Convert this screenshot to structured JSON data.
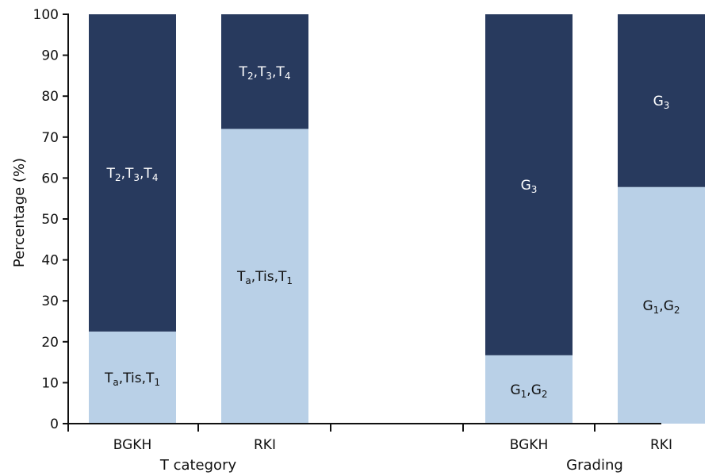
{
  "chart_data": {
    "type": "bar",
    "stacked": true,
    "ylabel": "Percentage (%)",
    "ylim": [
      0,
      100
    ],
    "yticks": [
      0,
      10,
      20,
      30,
      40,
      50,
      60,
      70,
      80,
      90,
      100
    ],
    "colors": {
      "lower": "#b9d0e7",
      "upper": "#283a5e"
    },
    "groups": [
      {
        "name": "T category",
        "bars": [
          {
            "category": "BGKH",
            "segments": [
              {
                "base": "T",
                "sub": "a",
                "rest": ",Tis,T",
                "sub2": "1",
                "value": 22.5,
                "position": "lower"
              },
              {
                "base": "T",
                "sub": "2",
                "rest": ",T",
                "sub2": "3",
                "rest2": ",T",
                "sub3": "4",
                "value": 77.5,
                "position": "upper"
              }
            ]
          },
          {
            "category": "RKI",
            "segments": [
              {
                "base": "T",
                "sub": "a",
                "rest": ",Tis,T",
                "sub2": "1",
                "value": 72,
                "position": "lower"
              },
              {
                "base": "T",
                "sub": "2",
                "rest": ",T",
                "sub2": "3",
                "rest2": ",T",
                "sub3": "4",
                "value": 28,
                "position": "upper"
              }
            ]
          }
        ]
      },
      {
        "name": "Grading",
        "bars": [
          {
            "category": "BGKH",
            "segments": [
              {
                "base": "G",
                "sub": "1",
                "rest": ",G",
                "sub2": "2",
                "value": 16.7,
                "position": "lower"
              },
              {
                "base": "G",
                "sub": "3",
                "value": 83.3,
                "position": "upper"
              }
            ]
          },
          {
            "category": "RKI",
            "segments": [
              {
                "base": "G",
                "sub": "1",
                "rest": ",G",
                "sub2": "2",
                "value": 57.8,
                "position": "lower"
              },
              {
                "base": "G",
                "sub": "3",
                "value": 42.2,
                "position": "upper"
              }
            ]
          }
        ]
      }
    ]
  }
}
